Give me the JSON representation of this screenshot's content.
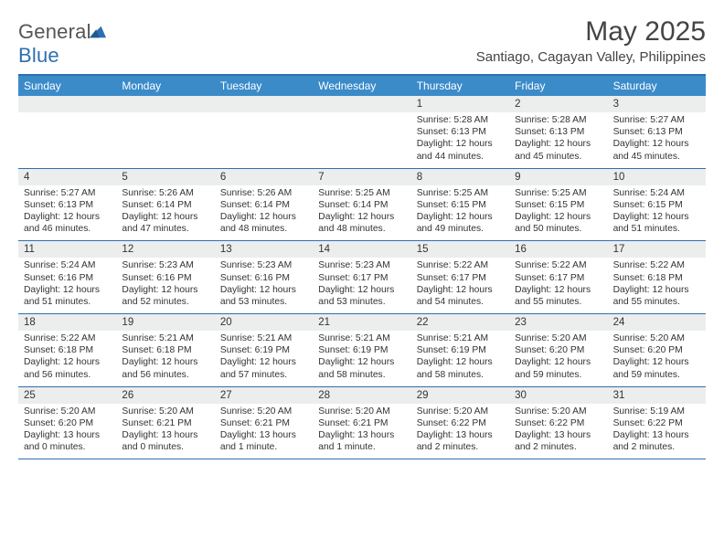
{
  "brand": {
    "name_part1": "General",
    "name_part2": "Blue"
  },
  "title": "May 2025",
  "location": "Santiago, Cagayan Valley, Philippines",
  "colors": {
    "header_band": "#3b8bc9",
    "rule": "#2f6fb0",
    "daynum_band": "#eceded",
    "text": "#333333"
  },
  "days_of_week": [
    "Sunday",
    "Monday",
    "Tuesday",
    "Wednesday",
    "Thursday",
    "Friday",
    "Saturday"
  ],
  "weeks": [
    [
      null,
      null,
      null,
      null,
      {
        "n": "1",
        "sunrise": "5:28 AM",
        "sunset": "6:13 PM",
        "daylight": "12 hours and 44 minutes."
      },
      {
        "n": "2",
        "sunrise": "5:28 AM",
        "sunset": "6:13 PM",
        "daylight": "12 hours and 45 minutes."
      },
      {
        "n": "3",
        "sunrise": "5:27 AM",
        "sunset": "6:13 PM",
        "daylight": "12 hours and 45 minutes."
      }
    ],
    [
      {
        "n": "4",
        "sunrise": "5:27 AM",
        "sunset": "6:13 PM",
        "daylight": "12 hours and 46 minutes."
      },
      {
        "n": "5",
        "sunrise": "5:26 AM",
        "sunset": "6:14 PM",
        "daylight": "12 hours and 47 minutes."
      },
      {
        "n": "6",
        "sunrise": "5:26 AM",
        "sunset": "6:14 PM",
        "daylight": "12 hours and 48 minutes."
      },
      {
        "n": "7",
        "sunrise": "5:25 AM",
        "sunset": "6:14 PM",
        "daylight": "12 hours and 48 minutes."
      },
      {
        "n": "8",
        "sunrise": "5:25 AM",
        "sunset": "6:15 PM",
        "daylight": "12 hours and 49 minutes."
      },
      {
        "n": "9",
        "sunrise": "5:25 AM",
        "sunset": "6:15 PM",
        "daylight": "12 hours and 50 minutes."
      },
      {
        "n": "10",
        "sunrise": "5:24 AM",
        "sunset": "6:15 PM",
        "daylight": "12 hours and 51 minutes."
      }
    ],
    [
      {
        "n": "11",
        "sunrise": "5:24 AM",
        "sunset": "6:16 PM",
        "daylight": "12 hours and 51 minutes."
      },
      {
        "n": "12",
        "sunrise": "5:23 AM",
        "sunset": "6:16 PM",
        "daylight": "12 hours and 52 minutes."
      },
      {
        "n": "13",
        "sunrise": "5:23 AM",
        "sunset": "6:16 PM",
        "daylight": "12 hours and 53 minutes."
      },
      {
        "n": "14",
        "sunrise": "5:23 AM",
        "sunset": "6:17 PM",
        "daylight": "12 hours and 53 minutes."
      },
      {
        "n": "15",
        "sunrise": "5:22 AM",
        "sunset": "6:17 PM",
        "daylight": "12 hours and 54 minutes."
      },
      {
        "n": "16",
        "sunrise": "5:22 AM",
        "sunset": "6:17 PM",
        "daylight": "12 hours and 55 minutes."
      },
      {
        "n": "17",
        "sunrise": "5:22 AM",
        "sunset": "6:18 PM",
        "daylight": "12 hours and 55 minutes."
      }
    ],
    [
      {
        "n": "18",
        "sunrise": "5:22 AM",
        "sunset": "6:18 PM",
        "daylight": "12 hours and 56 minutes."
      },
      {
        "n": "19",
        "sunrise": "5:21 AM",
        "sunset": "6:18 PM",
        "daylight": "12 hours and 56 minutes."
      },
      {
        "n": "20",
        "sunrise": "5:21 AM",
        "sunset": "6:19 PM",
        "daylight": "12 hours and 57 minutes."
      },
      {
        "n": "21",
        "sunrise": "5:21 AM",
        "sunset": "6:19 PM",
        "daylight": "12 hours and 58 minutes."
      },
      {
        "n": "22",
        "sunrise": "5:21 AM",
        "sunset": "6:19 PM",
        "daylight": "12 hours and 58 minutes."
      },
      {
        "n": "23",
        "sunrise": "5:20 AM",
        "sunset": "6:20 PM",
        "daylight": "12 hours and 59 minutes."
      },
      {
        "n": "24",
        "sunrise": "5:20 AM",
        "sunset": "6:20 PM",
        "daylight": "12 hours and 59 minutes."
      }
    ],
    [
      {
        "n": "25",
        "sunrise": "5:20 AM",
        "sunset": "6:20 PM",
        "daylight": "13 hours and 0 minutes."
      },
      {
        "n": "26",
        "sunrise": "5:20 AM",
        "sunset": "6:21 PM",
        "daylight": "13 hours and 0 minutes."
      },
      {
        "n": "27",
        "sunrise": "5:20 AM",
        "sunset": "6:21 PM",
        "daylight": "13 hours and 1 minute."
      },
      {
        "n": "28",
        "sunrise": "5:20 AM",
        "sunset": "6:21 PM",
        "daylight": "13 hours and 1 minute."
      },
      {
        "n": "29",
        "sunrise": "5:20 AM",
        "sunset": "6:22 PM",
        "daylight": "13 hours and 2 minutes."
      },
      {
        "n": "30",
        "sunrise": "5:20 AM",
        "sunset": "6:22 PM",
        "daylight": "13 hours and 2 minutes."
      },
      {
        "n": "31",
        "sunrise": "5:19 AM",
        "sunset": "6:22 PM",
        "daylight": "13 hours and 2 minutes."
      }
    ]
  ],
  "labels": {
    "sunrise": "Sunrise:",
    "sunset": "Sunset:",
    "daylight": "Daylight:"
  }
}
